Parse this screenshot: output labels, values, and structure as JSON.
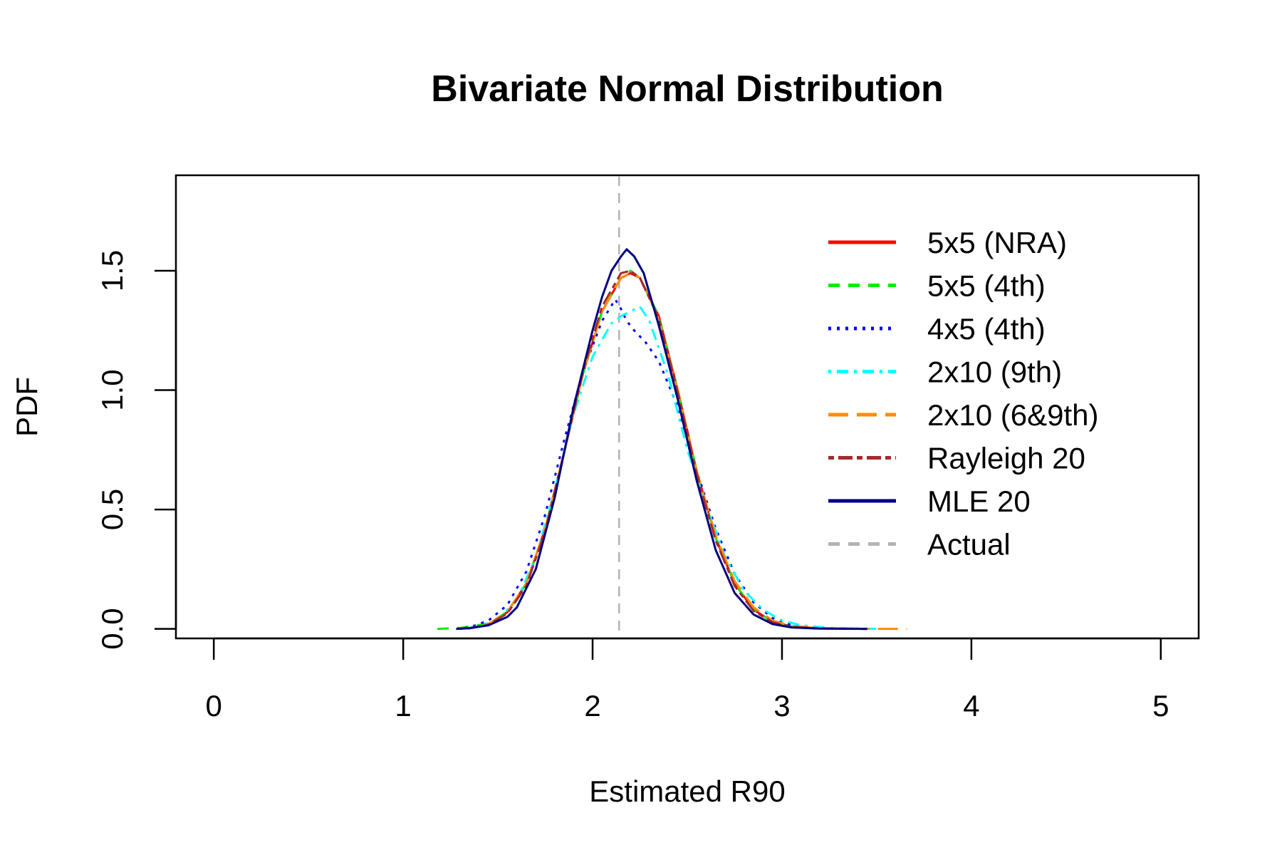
{
  "chart_data": {
    "type": "line",
    "title": "Bivariate Normal Distribution",
    "xlabel": "Estimated R90",
    "ylabel": "PDF",
    "xlim": [
      -0.2,
      5.2
    ],
    "ylim": [
      -0.04,
      1.9
    ],
    "x_ticks": [
      "0",
      "1",
      "2",
      "3",
      "4",
      "5"
    ],
    "x_tick_values": [
      0,
      1,
      2,
      3,
      4,
      5
    ],
    "y_ticks": [
      "0.0",
      "0.5",
      "1.0",
      "1.5"
    ],
    "y_tick_values": [
      0,
      0.5,
      1.0,
      1.5
    ],
    "grid": false,
    "legend_position": "top-right",
    "reference_line": {
      "name": "Actual",
      "x": 2.14,
      "color": "#b3b3b3",
      "dash": "dashed"
    },
    "series": [
      {
        "name": "5x5 (NRA)",
        "color": "#ff0000",
        "dash": "solid",
        "width": 3,
        "x": [
          1.28,
          1.35,
          1.45,
          1.55,
          1.65,
          1.75,
          1.85,
          1.95,
          2.05,
          2.15,
          2.2,
          2.25,
          2.35,
          2.45,
          2.55,
          2.65,
          2.75,
          2.85,
          2.95,
          3.05,
          3.2,
          3.45
        ],
        "y": [
          0.0,
          0.003,
          0.02,
          0.07,
          0.19,
          0.42,
          0.74,
          1.07,
          1.33,
          1.47,
          1.49,
          1.47,
          1.31,
          1.0,
          0.66,
          0.38,
          0.19,
          0.08,
          0.03,
          0.01,
          0.002,
          0.0
        ]
      },
      {
        "name": "5x5 (4th)",
        "color": "#00ee00",
        "dash": "dashed",
        "width": 3,
        "x": [
          1.18,
          1.3,
          1.45,
          1.55,
          1.65,
          1.75,
          1.85,
          1.95,
          2.05,
          2.15,
          2.2,
          2.25,
          2.35,
          2.45,
          2.55,
          2.65,
          2.75,
          2.85,
          2.95,
          3.05,
          3.2,
          3.45
        ],
        "y": [
          0.0,
          0.004,
          0.022,
          0.072,
          0.19,
          0.42,
          0.74,
          1.07,
          1.33,
          1.47,
          1.5,
          1.47,
          1.31,
          1.0,
          0.66,
          0.38,
          0.19,
          0.08,
          0.03,
          0.01,
          0.002,
          0.0
        ]
      },
      {
        "name": "4x5 (4th)",
        "color": "#0000ff",
        "dash": "dotted",
        "width": 3,
        "x": [
          1.28,
          1.35,
          1.45,
          1.55,
          1.65,
          1.75,
          1.85,
          1.95,
          2.05,
          2.12,
          2.15,
          2.18,
          2.22,
          2.28,
          2.35,
          2.45,
          2.55,
          2.65,
          2.75,
          2.85,
          2.95,
          3.05,
          3.2,
          3.45
        ],
        "y": [
          0.0,
          0.006,
          0.035,
          0.1,
          0.24,
          0.48,
          0.79,
          1.08,
          1.29,
          1.38,
          1.34,
          1.29,
          1.25,
          1.2,
          1.12,
          0.93,
          0.66,
          0.42,
          0.23,
          0.11,
          0.045,
          0.015,
          0.003,
          0.0
        ]
      },
      {
        "name": "2x10 (9th)",
        "color": "#00ffff",
        "dash": "dotdash",
        "width": 3,
        "x": [
          1.3,
          1.4,
          1.5,
          1.6,
          1.7,
          1.8,
          1.9,
          2.0,
          2.1,
          2.15,
          2.2,
          2.25,
          2.3,
          2.4,
          2.5,
          2.6,
          2.7,
          2.8,
          2.9,
          3.0,
          3.1,
          3.25,
          3.5
        ],
        "y": [
          0.0,
          0.01,
          0.04,
          0.12,
          0.3,
          0.58,
          0.9,
          1.14,
          1.28,
          1.31,
          1.33,
          1.35,
          1.29,
          1.06,
          0.75,
          0.52,
          0.3,
          0.16,
          0.08,
          0.035,
          0.015,
          0.004,
          0.0
        ]
      },
      {
        "name": "2x10 (6&9th)",
        "color": "#ff8c00",
        "dash": "longdash",
        "width": 3,
        "x": [
          1.28,
          1.35,
          1.45,
          1.55,
          1.65,
          1.75,
          1.85,
          1.95,
          2.05,
          2.15,
          2.2,
          2.25,
          2.35,
          2.45,
          2.55,
          2.65,
          2.75,
          2.85,
          2.95,
          3.05,
          3.2,
          3.45,
          3.66
        ],
        "y": [
          0.0,
          0.003,
          0.02,
          0.07,
          0.19,
          0.42,
          0.74,
          1.07,
          1.33,
          1.47,
          1.49,
          1.47,
          1.3,
          1.0,
          0.66,
          0.39,
          0.2,
          0.09,
          0.035,
          0.012,
          0.003,
          0.0,
          0.0
        ]
      },
      {
        "name": "Rayleigh 20",
        "color": "#a52a2a",
        "dash": "twodash",
        "width": 3,
        "x": [
          1.28,
          1.35,
          1.45,
          1.55,
          1.65,
          1.75,
          1.85,
          1.95,
          2.05,
          2.15,
          2.2,
          2.25,
          2.35,
          2.45,
          2.55,
          2.65,
          2.75,
          2.85,
          2.95,
          3.05,
          3.2,
          3.45
        ],
        "y": [
          0.0,
          0.002,
          0.018,
          0.065,
          0.18,
          0.41,
          0.74,
          1.08,
          1.35,
          1.49,
          1.5,
          1.47,
          1.3,
          0.99,
          0.65,
          0.37,
          0.18,
          0.075,
          0.028,
          0.009,
          0.002,
          0.0
        ]
      },
      {
        "name": "MLE 20",
        "color": "#000080",
        "dash": "solid",
        "width": 3,
        "x": [
          1.28,
          1.35,
          1.45,
          1.55,
          1.6,
          1.7,
          1.8,
          1.9,
          2.0,
          2.05,
          2.1,
          2.15,
          2.18,
          2.22,
          2.27,
          2.35,
          2.45,
          2.55,
          2.65,
          2.75,
          2.85,
          2.95,
          3.05,
          3.2,
          3.45
        ],
        "y": [
          0.0,
          0.003,
          0.015,
          0.05,
          0.09,
          0.25,
          0.55,
          0.93,
          1.25,
          1.39,
          1.5,
          1.56,
          1.59,
          1.56,
          1.49,
          1.27,
          0.96,
          0.62,
          0.33,
          0.15,
          0.06,
          0.02,
          0.006,
          0.001,
          0.0
        ]
      }
    ]
  },
  "legend_entries": [
    "5x5 (NRA)",
    "5x5 (4th)",
    "4x5 (4th)",
    "2x10 (9th)",
    "2x10 (6&9th)",
    "Rayleigh 20",
    "MLE 20",
    "Actual"
  ]
}
